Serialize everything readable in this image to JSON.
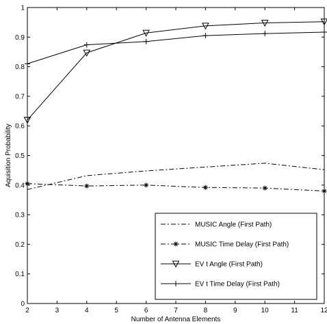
{
  "chart_data": {
    "type": "line",
    "xlabel": "Number of Antenna Elements",
    "ylabel": "Aquisition Probability",
    "xlim": [
      2,
      12
    ],
    "ylim": [
      0,
      1
    ],
    "xticks": [
      "2",
      "3",
      "4",
      "5",
      "6",
      "7",
      "8",
      "9",
      "10",
      "11",
      "12"
    ],
    "yticks": [
      "0",
      "0.1",
      "0.2",
      "0.3",
      "0.4",
      "0.5",
      "0.6",
      "0.7",
      "0.8",
      "0.9",
      "1"
    ],
    "grid": false,
    "legend_position": "lower-right",
    "series": [
      {
        "name": "MUSIC Angle (First Path)",
        "style": "dash-dot",
        "marker": "none",
        "x": [
          2,
          4,
          6,
          8,
          10,
          12
        ],
        "y": [
          0.385,
          0.432,
          0.448,
          0.461,
          0.474,
          0.452
        ]
      },
      {
        "name": "MUSIC Time Delay (First Path)",
        "style": "dash-dot",
        "marker": "star",
        "x": [
          2,
          4,
          6,
          8,
          10,
          12
        ],
        "y": [
          0.405,
          0.397,
          0.4,
          0.392,
          0.39,
          0.38
        ]
      },
      {
        "name": "EV t Angle (First Path)",
        "style": "solid",
        "marker": "triangle-down",
        "x": [
          2,
          4,
          6,
          8,
          10,
          12
        ],
        "y": [
          0.62,
          0.847,
          0.914,
          0.938,
          0.948,
          0.952
        ]
      },
      {
        "name": "EV t Time Delay (First Path)",
        "style": "solid",
        "marker": "plus",
        "x": [
          2,
          4,
          6,
          8,
          10,
          12
        ],
        "y": [
          0.81,
          0.874,
          0.885,
          0.905,
          0.912,
          0.917
        ]
      }
    ]
  }
}
